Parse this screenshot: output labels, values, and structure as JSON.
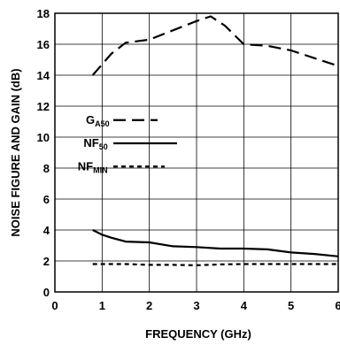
{
  "chart_data": {
    "type": "line",
    "title": "",
    "xlabel": "FREQUENCY (GHz)",
    "ylabel": "NOISE FIGURE AND GAIN (dB)",
    "xlim": [
      0,
      6
    ],
    "ylim": [
      0,
      18
    ],
    "x_ticks": [
      0,
      1,
      2,
      3,
      4,
      5,
      6
    ],
    "y_ticks": [
      0,
      2,
      4,
      6,
      8,
      10,
      12,
      14,
      16,
      18
    ],
    "grid": true,
    "legend_position": "middle-left",
    "series": [
      {
        "name": "G",
        "name_subscript": "A50",
        "line_style": "long-dash",
        "x": [
          0.8,
          1.0,
          1.2,
          1.5,
          2.0,
          2.5,
          3.0,
          3.3,
          3.6,
          4.0,
          4.5,
          5.0,
          5.5,
          6.0
        ],
        "y": [
          14.0,
          14.7,
          15.4,
          16.1,
          16.3,
          16.9,
          17.5,
          17.8,
          17.2,
          16.0,
          15.9,
          15.6,
          15.1,
          14.6
        ]
      },
      {
        "name": "NF",
        "name_subscript": "50",
        "line_style": "solid",
        "x": [
          0.8,
          1.0,
          1.2,
          1.5,
          2.0,
          2.5,
          3.0,
          3.5,
          4.0,
          4.5,
          5.0,
          5.5,
          6.0
        ],
        "y": [
          4.0,
          3.7,
          3.5,
          3.25,
          3.2,
          2.95,
          2.9,
          2.8,
          2.8,
          2.75,
          2.55,
          2.45,
          2.3
        ]
      },
      {
        "name": "NF",
        "name_subscript": "MIN",
        "line_style": "short-dash",
        "x": [
          0.8,
          1.0,
          1.5,
          2.0,
          2.5,
          3.0,
          3.5,
          4.0,
          4.5,
          5.0,
          5.5,
          6.0
        ],
        "y": [
          1.8,
          1.8,
          1.8,
          1.75,
          1.75,
          1.72,
          1.78,
          1.8,
          1.8,
          1.8,
          1.8,
          1.8
        ]
      }
    ]
  }
}
